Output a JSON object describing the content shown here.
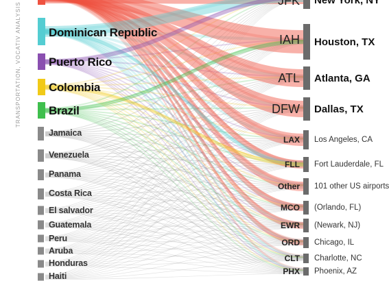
{
  "credit": "TRANSPORTATION, VOCATIV ANALYSIS",
  "origins": [
    {
      "label": "",
      "color": "#ef5240",
      "weight": 5,
      "size": "big"
    },
    {
      "label": "Dominican Republic",
      "color": "#54cdd2",
      "weight": 5,
      "size": "big"
    },
    {
      "label": "Puerto Rico",
      "color": "#8a4fb0",
      "weight": 2.5,
      "size": "big"
    },
    {
      "label": "Colombia",
      "color": "#f1ca18",
      "weight": 2.5,
      "size": "big"
    },
    {
      "label": "Brazil",
      "color": "#3fbf4d",
      "weight": 2.5,
      "size": "big"
    },
    {
      "label": "Jamaica",
      "color": "#8a8a8a",
      "weight": 1.3,
      "size": "small"
    },
    {
      "label": "Venezuela",
      "color": "#8a8a8a",
      "weight": 1.3,
      "size": "small"
    },
    {
      "label": "Panama",
      "color": "#8a8a8a",
      "weight": 1.0,
      "size": "small"
    },
    {
      "label": "Costa Rica",
      "color": "#8a8a8a",
      "weight": 1.0,
      "size": "small"
    },
    {
      "label": "El salvador",
      "color": "#8a8a8a",
      "weight": 0.8,
      "size": "small"
    },
    {
      "label": "Guatemala",
      "color": "#8a8a8a",
      "weight": 0.8,
      "size": "small"
    },
    {
      "label": "Peru",
      "color": "#8a8a8a",
      "weight": 0.6,
      "size": "small"
    },
    {
      "label": "Aruba",
      "color": "#8a8a8a",
      "weight": 0.6,
      "size": "small"
    },
    {
      "label": "Honduras",
      "color": "#8a8a8a",
      "weight": 0.6,
      "size": "small"
    },
    {
      "label": "Haiti",
      "color": "#8a8a8a",
      "weight": 0.6,
      "size": "small"
    }
  ],
  "destinations": [
    {
      "code": "JFK",
      "city": "New York, NY",
      "size": "big"
    },
    {
      "code": "IAH",
      "city": "Houston, TX",
      "size": "big"
    },
    {
      "code": "ATL",
      "city": "Atlanta, GA",
      "size": "big"
    },
    {
      "code": "DFW",
      "city": "Dallas, TX",
      "size": "big"
    },
    {
      "code": "LAX",
      "city": "Los Angeles, CA",
      "size": "small"
    },
    {
      "code": "FLL",
      "city": "Fort Lauderdale, FL",
      "size": "small"
    },
    {
      "code": "Other",
      "city": "101 other US airports",
      "size": "small"
    },
    {
      "code": "MCO",
      "city": "(Orlando, FL)",
      "size": "small"
    },
    {
      "code": "EWR",
      "city": "(Newark, NJ)",
      "size": "small"
    },
    {
      "code": "ORD",
      "city": "Chicago, IL",
      "size": "small"
    },
    {
      "code": "CLT",
      "city": "Charlotte, NC",
      "size": "small"
    },
    {
      "code": "PHX",
      "city": "Phoenix, AZ",
      "size": "small"
    }
  ],
  "colors": {
    "node_bar": "#6b6b6b",
    "gray_flow": "#9a9a9a",
    "background": "#ffffff"
  }
}
